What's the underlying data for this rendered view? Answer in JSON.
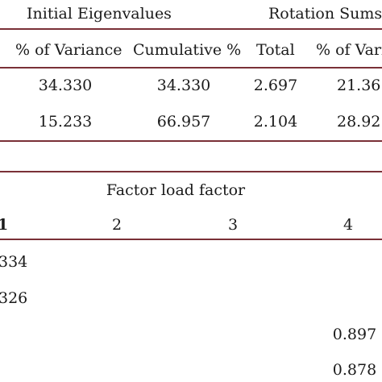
{
  "eigen_table": {
    "group_headers": {
      "initial": "Initial Eigenvalues",
      "rotation": "Rotation Sums c"
    },
    "columns": [
      "% of Variance",
      "Cumulative %",
      "Total",
      "% of Vari"
    ],
    "rows": [
      [
        "34.330",
        "34.330",
        "2.697",
        "21.36"
      ],
      [
        "15.233",
        "66.957",
        "2.104",
        "28.92"
      ]
    ]
  },
  "loading_table": {
    "title": "Factor load factor",
    "factor_numbers": [
      "1",
      "2",
      "3",
      "4"
    ],
    "rows": [
      {
        "col1": "334",
        "col4": ""
      },
      {
        "col1": "326",
        "col4": ""
      },
      {
        "col1": "",
        "col4": "0.897"
      },
      {
        "col1": "",
        "col4": "0.878"
      }
    ]
  },
  "colors": {
    "rule": "#7a3037",
    "text": "#1a1a1a"
  }
}
